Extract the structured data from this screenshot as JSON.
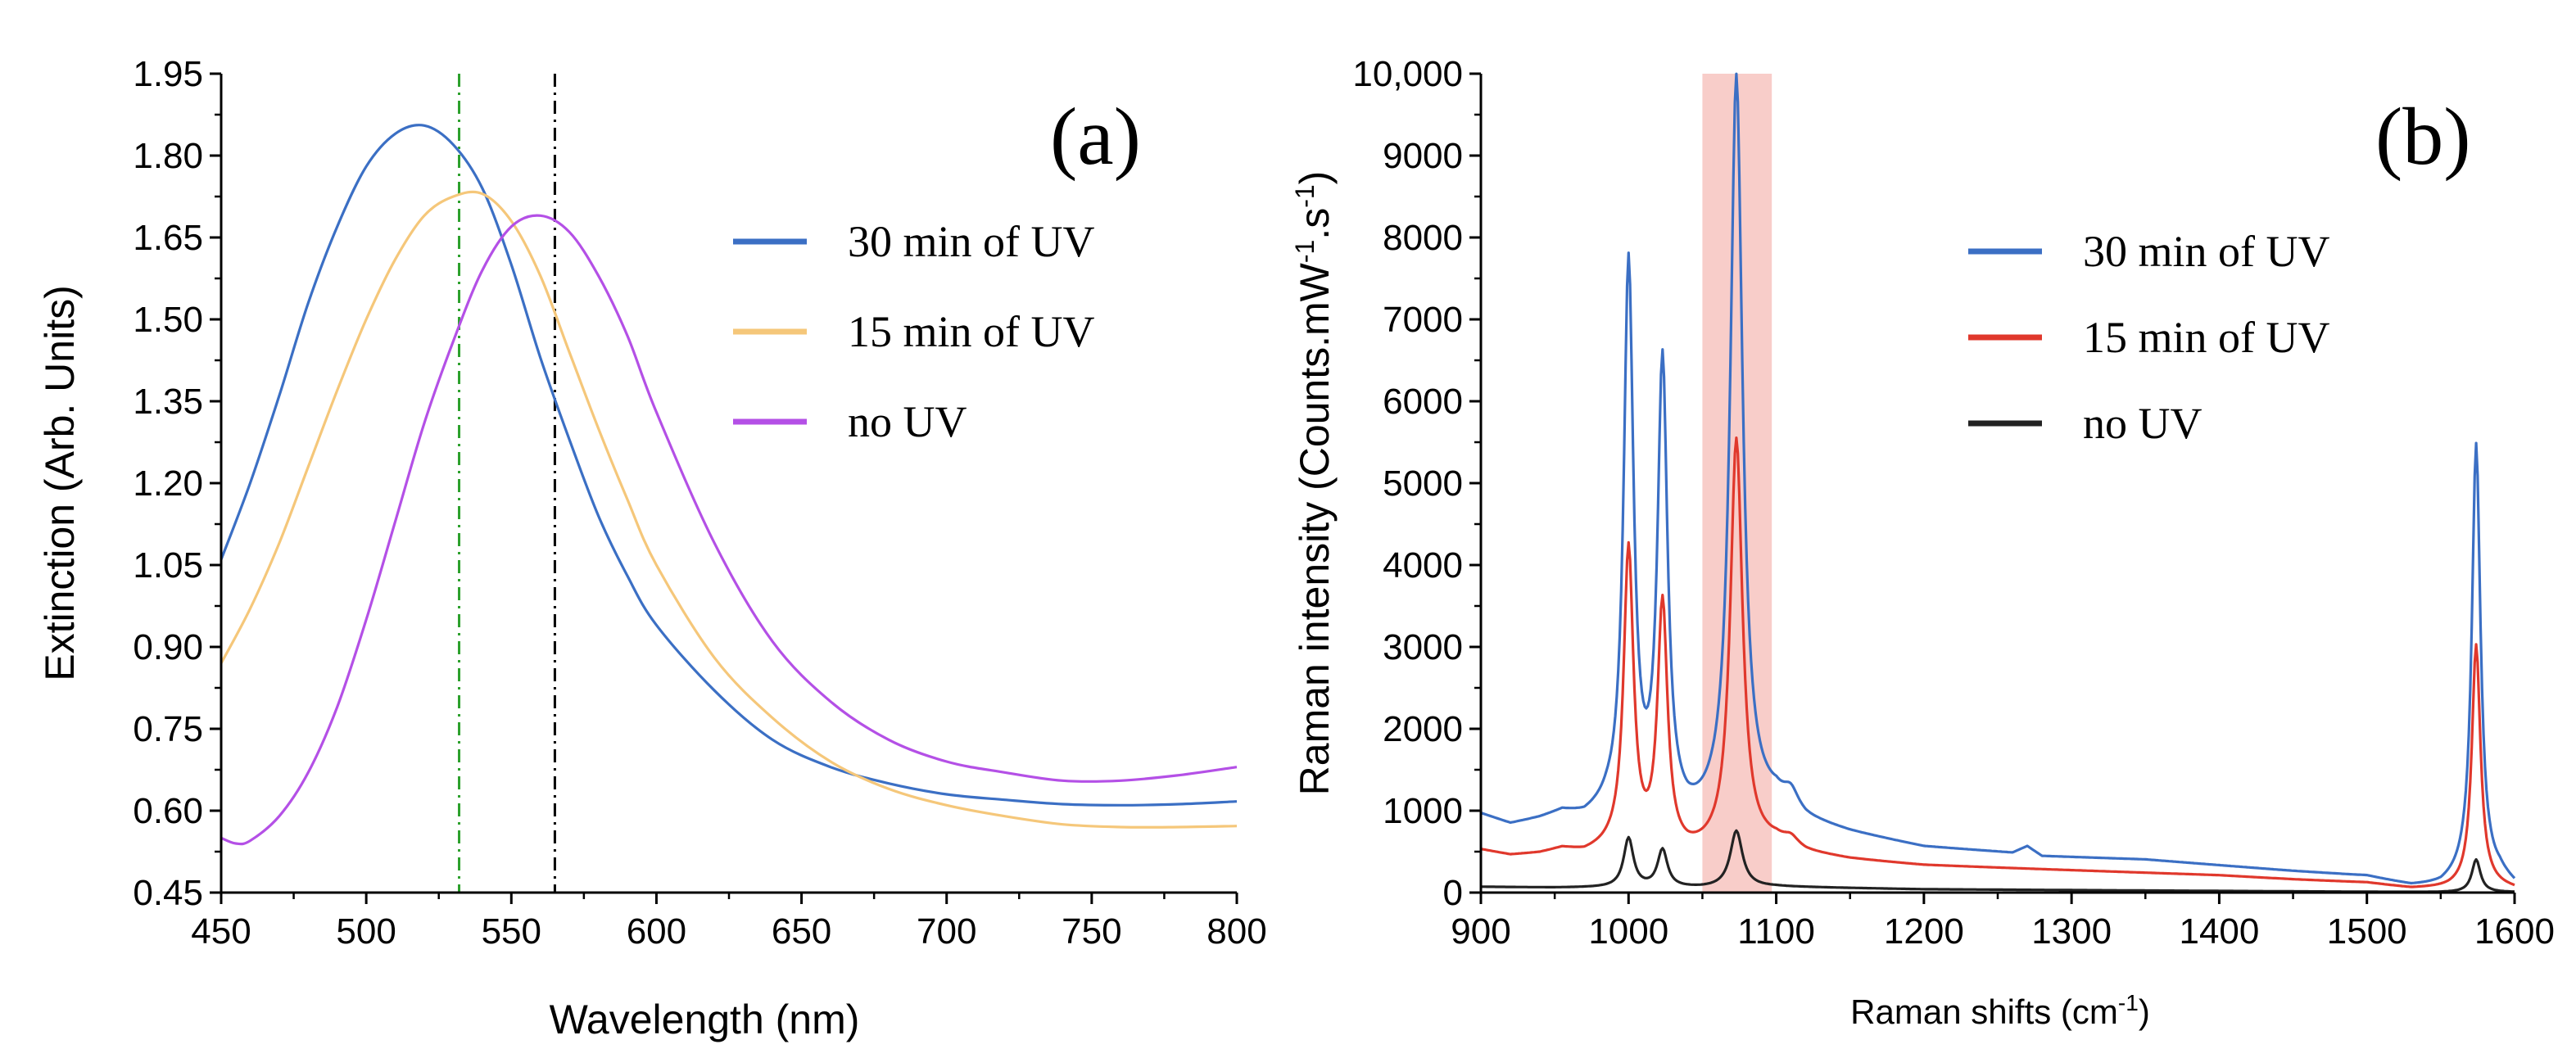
{
  "chart_data": [
    {
      "type": "line",
      "panel_label": "(a)",
      "xlabel": "Wavelength (nm)",
      "ylabel": "Extinction (Arb. Units)",
      "xlim": [
        450,
        800
      ],
      "ylim": [
        0.45,
        1.95
      ],
      "xticks": [
        450,
        500,
        550,
        600,
        650,
        700,
        750,
        800
      ],
      "yticks": [
        "0.45",
        "0.60",
        "0.75",
        "0.90",
        "1.05",
        "1.20",
        "1.35",
        "1.50",
        "1.65",
        "1.80",
        "1.95"
      ],
      "vlines": [
        {
          "x": 532,
          "color": "#2ca02c",
          "style": "dash-dot"
        },
        {
          "x": 565,
          "color": "#000000",
          "style": "dash-dot"
        }
      ],
      "legend_position": "right",
      "series": [
        {
          "name": "30 min of UV",
          "color": "#3b6fc4",
          "x": [
            450,
            460,
            470,
            480,
            490,
            500,
            510,
            520,
            530,
            540,
            550,
            560,
            570,
            580,
            590,
            600,
            620,
            640,
            660,
            680,
            700,
            720,
            740,
            760,
            780,
            800
          ],
          "y": [
            1.06,
            1.2,
            1.36,
            1.53,
            1.67,
            1.78,
            1.84,
            1.855,
            1.82,
            1.74,
            1.6,
            1.43,
            1.28,
            1.14,
            1.03,
            0.94,
            0.82,
            0.73,
            0.68,
            0.65,
            0.63,
            0.62,
            0.612,
            0.61,
            0.612,
            0.617
          ]
        },
        {
          "name": "15 min of UV",
          "color": "#f5c77a",
          "x": [
            450,
            460,
            470,
            480,
            490,
            500,
            510,
            520,
            530,
            540,
            550,
            560,
            570,
            580,
            590,
            600,
            620,
            640,
            660,
            680,
            700,
            720,
            740,
            760,
            780,
            800
          ],
          "y": [
            0.87,
            0.97,
            1.09,
            1.23,
            1.37,
            1.5,
            1.61,
            1.69,
            1.725,
            1.73,
            1.68,
            1.58,
            1.44,
            1.3,
            1.17,
            1.05,
            0.88,
            0.77,
            0.69,
            0.64,
            0.61,
            0.59,
            0.575,
            0.57,
            0.57,
            0.572
          ]
        },
        {
          "name": "no UV",
          "color": "#b450e6",
          "x": [
            450,
            455,
            460,
            470,
            480,
            490,
            500,
            510,
            520,
            530,
            540,
            550,
            560,
            570,
            580,
            590,
            600,
            620,
            640,
            660,
            680,
            700,
            720,
            740,
            760,
            780,
            800
          ],
          "y": [
            0.55,
            0.54,
            0.545,
            0.59,
            0.67,
            0.79,
            0.95,
            1.13,
            1.31,
            1.46,
            1.59,
            1.67,
            1.69,
            1.66,
            1.58,
            1.47,
            1.33,
            1.09,
            0.91,
            0.8,
            0.73,
            0.69,
            0.67,
            0.655,
            0.655,
            0.665,
            0.68
          ]
        }
      ]
    },
    {
      "type": "line",
      "panel_label": "(b)",
      "xlabel": "Raman shifts (cm",
      "xlabel_sup": "-1",
      "xlabel_end": ")",
      "ylabel": "Raman intensity (Counts.mW",
      "ylabel_sup1": "-1",
      "ylabel_mid": ".s",
      "ylabel_sup2": "-1",
      "ylabel_end": ")",
      "xlim": [
        900,
        1600
      ],
      "ylim": [
        0,
        10000
      ],
      "xticks": [
        900,
        1000,
        1100,
        1200,
        1300,
        1400,
        1500,
        1600
      ],
      "yticks": [
        "0",
        "1000",
        "2000",
        "3000",
        "4000",
        "5000",
        "6000",
        "7000",
        "8000",
        "9000",
        "10,000"
      ],
      "highlight_band": {
        "x0": 1050,
        "x1": 1097,
        "color": "#f7c4c0"
      },
      "legend_position": "right",
      "series": [
        {
          "name": "30 min of UV",
          "color": "#3b6fc4",
          "baseline": [
            [
              900,
              950
            ],
            [
              920,
              820
            ],
            [
              940,
              880
            ],
            [
              955,
              950
            ],
            [
              970,
              880
            ],
            [
              985,
              950
            ],
            [
              1040,
              800
            ],
            [
              1100,
              1050
            ],
            [
              1120,
              850
            ],
            [
              1150,
              720
            ],
            [
              1200,
              550
            ],
            [
              1260,
              480
            ],
            [
              1270,
              560
            ],
            [
              1280,
              440
            ],
            [
              1350,
              400
            ],
            [
              1400,
              330
            ],
            [
              1450,
              260
            ],
            [
              1500,
              200
            ],
            [
              1530,
              80
            ],
            [
              1550,
              80
            ],
            [
              1565,
              180
            ],
            [
              1590,
              200
            ],
            [
              1600,
              80
            ]
          ],
          "peaks": [
            [
              1000,
              6700,
              4
            ],
            [
              1023,
              5500,
              4
            ],
            [
              1073,
              9000,
              5
            ],
            [
              1110,
              200,
              6
            ],
            [
              1574,
              5300,
              3.5
            ]
          ]
        },
        {
          "name": "15 min of UV",
          "color": "#e0382c",
          "baseline": [
            [
              900,
              520
            ],
            [
              920,
              450
            ],
            [
              940,
              470
            ],
            [
              955,
              520
            ],
            [
              970,
              470
            ],
            [
              990,
              530
            ],
            [
              1040,
              450
            ],
            [
              1100,
              580
            ],
            [
              1120,
              470
            ],
            [
              1150,
              400
            ],
            [
              1200,
              330
            ],
            [
              1300,
              270
            ],
            [
              1400,
              210
            ],
            [
              1450,
              160
            ],
            [
              1500,
              120
            ],
            [
              1530,
              50
            ],
            [
              1555,
              50
            ],
            [
              1580,
              90
            ],
            [
              1600,
              40
            ]
          ],
          "peaks": [
            [
              1000,
              3650,
              4
            ],
            [
              1023,
              3000,
              4
            ],
            [
              1073,
              5000,
              5
            ],
            [
              1110,
              100,
              6
            ],
            [
              1574,
              2950,
              3.5
            ]
          ]
        },
        {
          "name": "no UV",
          "color": "#222222",
          "baseline": [
            [
              900,
              70
            ],
            [
              950,
              60
            ],
            [
              1000,
              60
            ],
            [
              1050,
              55
            ],
            [
              1100,
              70
            ],
            [
              1200,
              40
            ],
            [
              1300,
              30
            ],
            [
              1400,
              20
            ],
            [
              1500,
              10
            ],
            [
              1550,
              5
            ],
            [
              1600,
              5
            ]
          ],
          "peaks": [
            [
              1000,
              600,
              4
            ],
            [
              1023,
              460,
              4
            ],
            [
              1073,
              690,
              5
            ],
            [
              1574,
              400,
              3.5
            ]
          ]
        }
      ]
    }
  ]
}
